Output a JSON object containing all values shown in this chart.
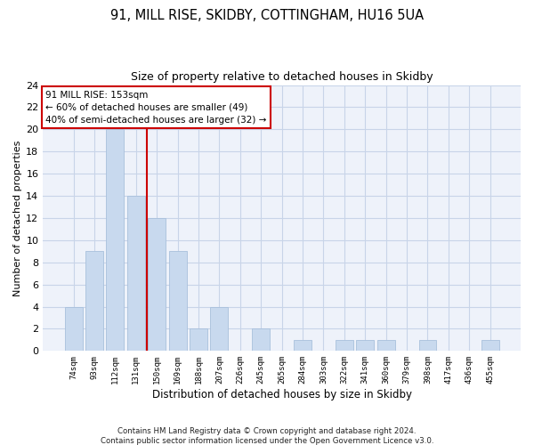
{
  "title_line1": "91, MILL RISE, SKIDBY, COTTINGHAM, HU16 5UA",
  "title_line2": "Size of property relative to detached houses in Skidby",
  "xlabel": "Distribution of detached houses by size in Skidby",
  "ylabel": "Number of detached properties",
  "categories": [
    "74sqm",
    "93sqm",
    "112sqm",
    "131sqm",
    "150sqm",
    "169sqm",
    "188sqm",
    "207sqm",
    "226sqm",
    "245sqm",
    "265sqm",
    "284sqm",
    "303sqm",
    "322sqm",
    "341sqm",
    "360sqm",
    "379sqm",
    "398sqm",
    "417sqm",
    "436sqm",
    "455sqm"
  ],
  "values": [
    4,
    9,
    20,
    14,
    12,
    9,
    2,
    4,
    0,
    2,
    0,
    1,
    0,
    1,
    1,
    1,
    0,
    1,
    0,
    0,
    1
  ],
  "bar_color": "#c8d9ee",
  "bar_edge_color": "#a8c0dc",
  "annotation_text": "91 MILL RISE: 153sqm\n← 60% of detached houses are smaller (49)\n40% of semi-detached houses are larger (32) →",
  "annotation_box_color": "#ffffff",
  "annotation_box_edge_color": "#cc0000",
  "ylim": [
    0,
    24
  ],
  "yticks": [
    0,
    2,
    4,
    6,
    8,
    10,
    12,
    14,
    16,
    18,
    20,
    22,
    24
  ],
  "red_line_color": "#cc0000",
  "red_line_x": 3.5,
  "footer_text": "Contains HM Land Registry data © Crown copyright and database right 2024.\nContains public sector information licensed under the Open Government Licence v3.0.",
  "grid_color": "#c8d4e8",
  "background_color": "#eef2fa"
}
